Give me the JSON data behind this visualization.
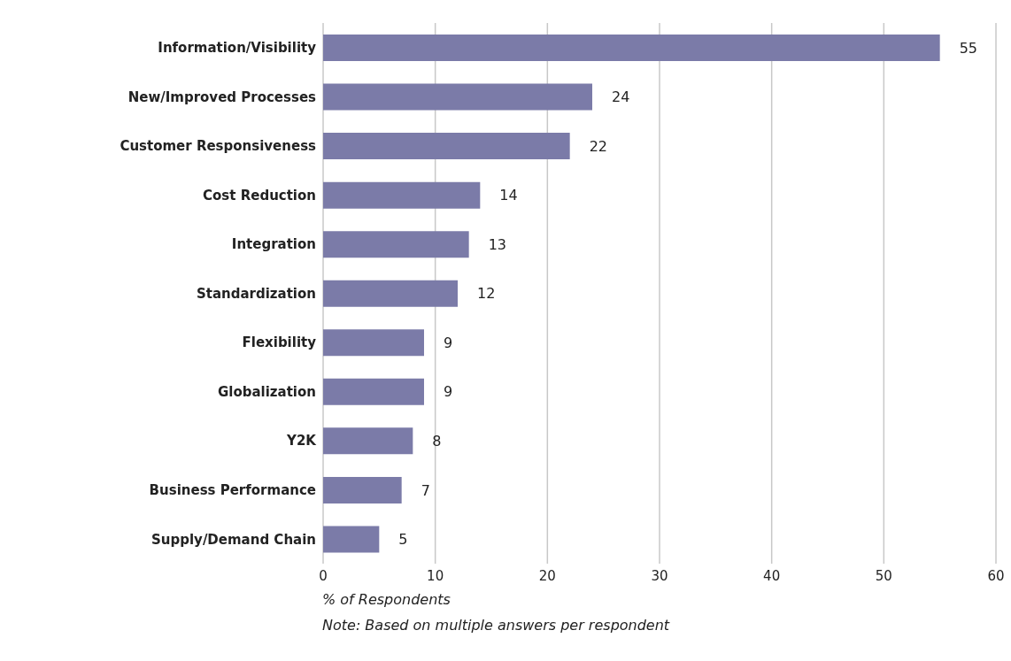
{
  "chart_data": {
    "type": "bar",
    "orientation": "horizontal",
    "categories": [
      "Information/Visibility",
      "New/Improved Processes",
      "Customer Responsiveness",
      "Cost Reduction",
      "Integration",
      "Standardization",
      "Flexibility",
      "Globalization",
      "Y2K",
      "Business Performance",
      "Supply/Demand Chain"
    ],
    "values": [
      55,
      24,
      22,
      14,
      13,
      12,
      9,
      9,
      8,
      7,
      5
    ],
    "color": "#7b7ba8",
    "xlim": [
      0,
      60
    ],
    "xticks": [
      0,
      10,
      20,
      30,
      40,
      50,
      60
    ],
    "grid": "x",
    "data_labels": true,
    "xlabel": "% of Respondents",
    "annotations": [
      "Note: Based on multiple answers per respondent"
    ]
  }
}
